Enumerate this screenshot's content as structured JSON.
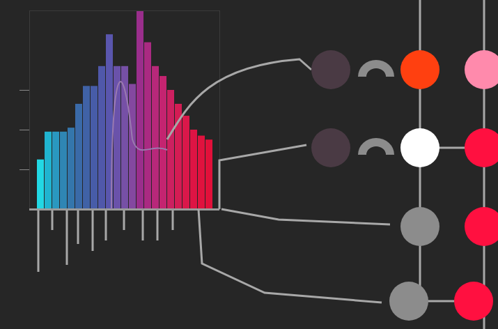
{
  "chart_data": {
    "type": "bar",
    "categories": [
      null,
      null,
      null,
      null,
      null,
      null,
      null,
      null,
      null,
      null,
      null,
      null,
      null,
      null,
      null,
      null,
      null,
      null,
      null,
      null,
      null,
      null,
      null
    ],
    "values": [
      25,
      39,
      39,
      39,
      41,
      53,
      62,
      62,
      72,
      88,
      72,
      72,
      63,
      100,
      84,
      72,
      67,
      60,
      53,
      47,
      40,
      37,
      35
    ],
    "colors": [
      "#22d8e4",
      "#20b4d0",
      "#2a98c0",
      "#2f86b4",
      "#3476ac",
      "#3a6aa8",
      "#4062a6",
      "#475ca8",
      "#5058aa",
      "#5a56ae",
      "#6a52aa",
      "#7650a6",
      "#8448a0",
      "#9a2e8c",
      "#aa2a82",
      "#b8287a",
      "#c42470",
      "#cc2060",
      "#d41c54",
      "#da184a",
      "#de1444",
      "#e0123e",
      "#e2103a"
    ],
    "ylim": [
      0,
      100
    ],
    "yticks": [
      20,
      40,
      60
    ],
    "tick_labels": false
  }
}
